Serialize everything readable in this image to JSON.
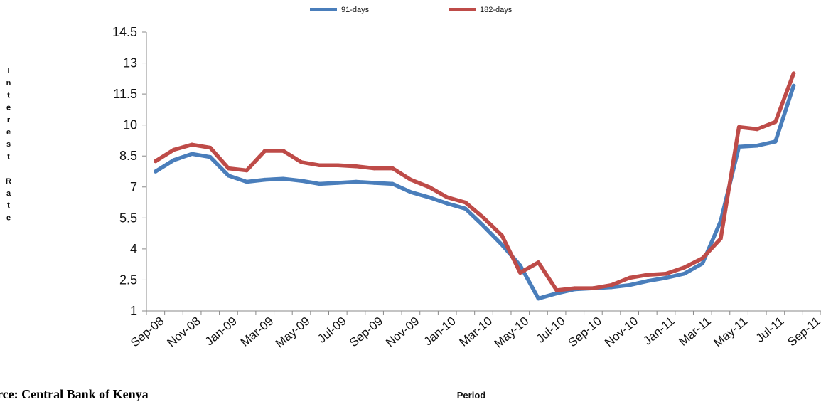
{
  "chart_data": {
    "type": "line",
    "x": [
      "Sep-08",
      "Oct-08",
      "Nov-08",
      "Dec-08",
      "Jan-09",
      "Feb-09",
      "Mar-09",
      "Apr-09",
      "May-09",
      "Jun-09",
      "Jul-09",
      "Aug-09",
      "Sep-09",
      "Oct-09",
      "Nov-09",
      "Dec-09",
      "Jan-10",
      "Feb-10",
      "Mar-10",
      "Apr-10",
      "May-10",
      "Jun-10",
      "Jul-10",
      "Aug-10",
      "Sep-10",
      "Oct-10",
      "Nov-10",
      "Dec-10",
      "Jan-11",
      "Feb-11",
      "Mar-11",
      "Apr-11",
      "May-11",
      "Jun-11",
      "Jul-11",
      "Aug-11",
      "Sep-11"
    ],
    "x_tick_labels": [
      "Sep-08",
      "Nov-08",
      "Jan-09",
      "Mar-09",
      "May-09",
      "Jul-09",
      "Sep-09",
      "Nov-09",
      "Jan-10",
      "Mar-10",
      "May-10",
      "Jul-10",
      "Sep-10",
      "Nov-10",
      "Jan-11",
      "Mar-11",
      "May-11",
      "Jul-11",
      "Sep-11"
    ],
    "series": [
      {
        "name": "91-days",
        "color": "#4a7ebb",
        "values": [
          7.75,
          8.3,
          8.6,
          8.45,
          7.55,
          7.25,
          7.35,
          7.4,
          7.3,
          7.15,
          7.2,
          7.25,
          7.2,
          7.15,
          6.75,
          6.5,
          6.2,
          5.95,
          5.1,
          4.2,
          3.2,
          1.6,
          1.85,
          2.05,
          2.1,
          2.15,
          2.25,
          2.45,
          2.6,
          2.8,
          3.3,
          5.35,
          8.95,
          9.0,
          9.2,
          11.9,
          null
        ],
        "visible_from": 1
      },
      {
        "name": "182-days",
        "color": "#be4b48",
        "values": [
          8.25,
          8.8,
          9.05,
          8.9,
          7.9,
          7.8,
          8.75,
          8.75,
          8.2,
          8.05,
          8.05,
          8.0,
          7.9,
          7.9,
          7.35,
          7.0,
          6.5,
          6.25,
          5.5,
          4.65,
          2.85,
          3.35,
          2.0,
          2.1,
          2.1,
          2.25,
          2.6,
          2.75,
          2.8,
          3.1,
          3.55,
          4.5,
          9.9,
          9.8,
          10.15,
          12.5,
          null
        ],
        "visible_from": 1
      }
    ],
    "title": "",
    "xlabel": "Period",
    "ylabel": "Interest Rate",
    "ylabel_rows": [
      "I",
      "n",
      "t",
      "e",
      "r",
      "e",
      "s",
      "t",
      "",
      "R",
      "a",
      "t",
      "e"
    ],
    "yticks": [
      "1",
      "2.5",
      "4",
      "5.5",
      "7",
      "8.5",
      "10",
      "11.5",
      "13",
      "14.5"
    ],
    "ylim": [
      1,
      14.5
    ],
    "grid": false,
    "legend_position": "top"
  },
  "source_note": "urce: Central Bank of Kenya"
}
